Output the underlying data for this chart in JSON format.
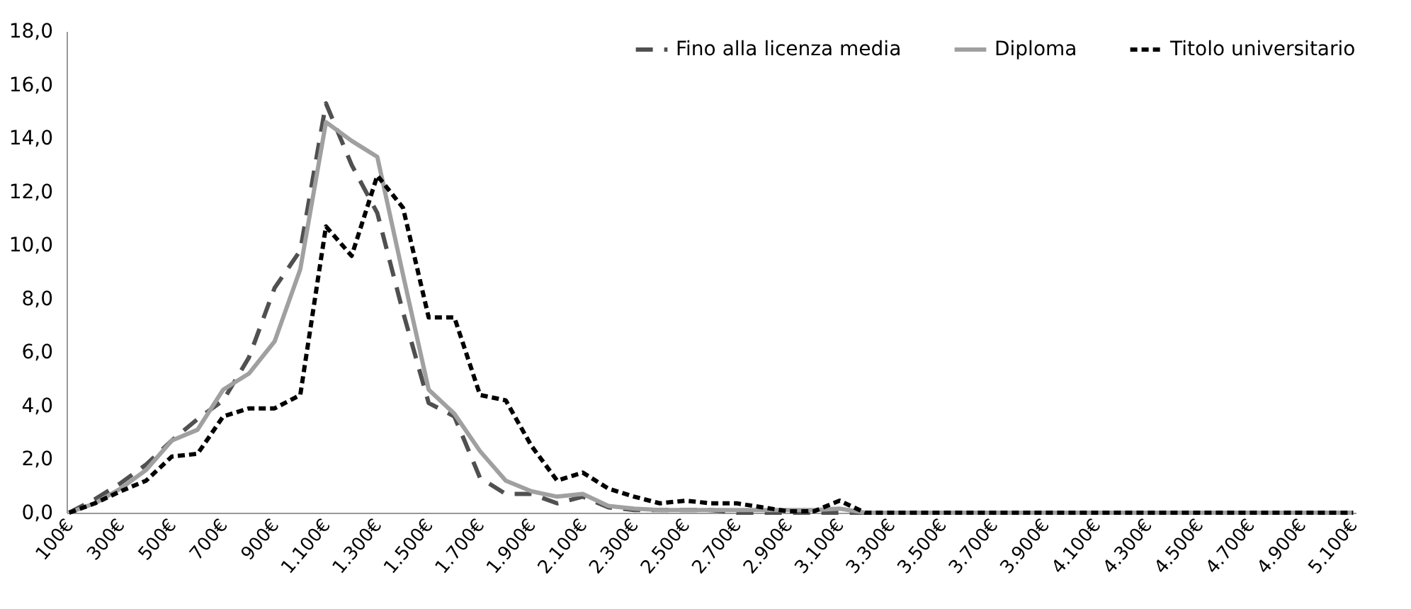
{
  "chart_data": {
    "type": "line",
    "categories": [
      "100€",
      null,
      "300€",
      null,
      "500€",
      null,
      "700€",
      null,
      "900€",
      null,
      "1.100€",
      null,
      "1.300€",
      null,
      "1.500€",
      null,
      "1.700€",
      null,
      "1.900€",
      null,
      "2.100€",
      null,
      "2.300€",
      null,
      "2.500€",
      null,
      "2.700€",
      null,
      "2.900€",
      null,
      "3.100€",
      null,
      "3.300€",
      null,
      "3.500€",
      null,
      "3.700€",
      null,
      "3.900€",
      null,
      "4.100€",
      null,
      "4.300€",
      null,
      "4.500€",
      null,
      "4.700€",
      null,
      "4.900€",
      null,
      "5.100€"
    ],
    "series": [
      {
        "name": "Fino alla licenza media",
        "color": "#505050",
        "line_style": "dashed",
        "values": [
          0,
          0.5,
          1.1,
          1.8,
          2.7,
          3.5,
          4.2,
          5.8,
          8.4,
          9.8,
          15.3,
          13.0,
          11.2,
          7.5,
          4.1,
          3.6,
          1.3,
          0.7,
          0.7,
          0.35,
          0.6,
          0.2,
          0.1,
          0.1,
          0.1,
          0.1,
          0,
          0,
          0,
          0,
          0,
          0,
          0,
          0,
          0,
          0,
          0,
          0,
          0,
          0,
          0,
          0,
          0,
          0,
          0,
          0,
          0,
          0,
          0,
          0,
          0
        ]
      },
      {
        "name": "Diploma",
        "color": "#a0a0a0",
        "line_style": "solid",
        "values": [
          0,
          0.35,
          0.9,
          1.6,
          2.7,
          3.1,
          4.6,
          5.2,
          6.4,
          9.1,
          14.6,
          13.9,
          13.3,
          8.9,
          4.6,
          3.7,
          2.3,
          1.2,
          0.8,
          0.6,
          0.7,
          0.25,
          0.15,
          0.1,
          0.1,
          0.1,
          0.1,
          0.1,
          0.1,
          0.1,
          0.15,
          0,
          0,
          0,
          0,
          0,
          0,
          0,
          0,
          0,
          0,
          0,
          0,
          0,
          0,
          0,
          0,
          0,
          0,
          0,
          0
        ]
      },
      {
        "name": "Titolo universitario",
        "color": "#000000",
        "line_style": "dotted",
        "values": [
          0,
          0.35,
          0.8,
          1.2,
          2.1,
          2.2,
          3.6,
          3.9,
          3.9,
          4.4,
          10.7,
          9.6,
          12.6,
          11.4,
          7.3,
          7.3,
          4.4,
          4.2,
          2.5,
          1.2,
          1.5,
          0.9,
          0.6,
          0.35,
          0.45,
          0.35,
          0.35,
          0.2,
          0.05,
          0.05,
          0.45,
          0,
          0,
          0,
          0,
          0,
          0,
          0,
          0,
          0,
          0,
          0,
          0,
          0,
          0,
          0,
          0,
          0,
          0,
          0,
          0
        ]
      }
    ],
    "ylim": [
      0,
      18
    ],
    "yticks": [
      {
        "value": 0,
        "label": "0,0"
      },
      {
        "value": 2,
        "label": "2,0"
      },
      {
        "value": 4,
        "label": "4,0"
      },
      {
        "value": 6,
        "label": "6,0"
      },
      {
        "value": 8,
        "label": "8,0"
      },
      {
        "value": 10,
        "label": "10,0"
      },
      {
        "value": 12,
        "label": "12,0"
      },
      {
        "value": 14,
        "label": "14,0"
      },
      {
        "value": 16,
        "label": "16,0"
      },
      {
        "value": 18,
        "label": "18,0"
      }
    ],
    "grid": false,
    "legend": "top right",
    "marker": "none"
  }
}
